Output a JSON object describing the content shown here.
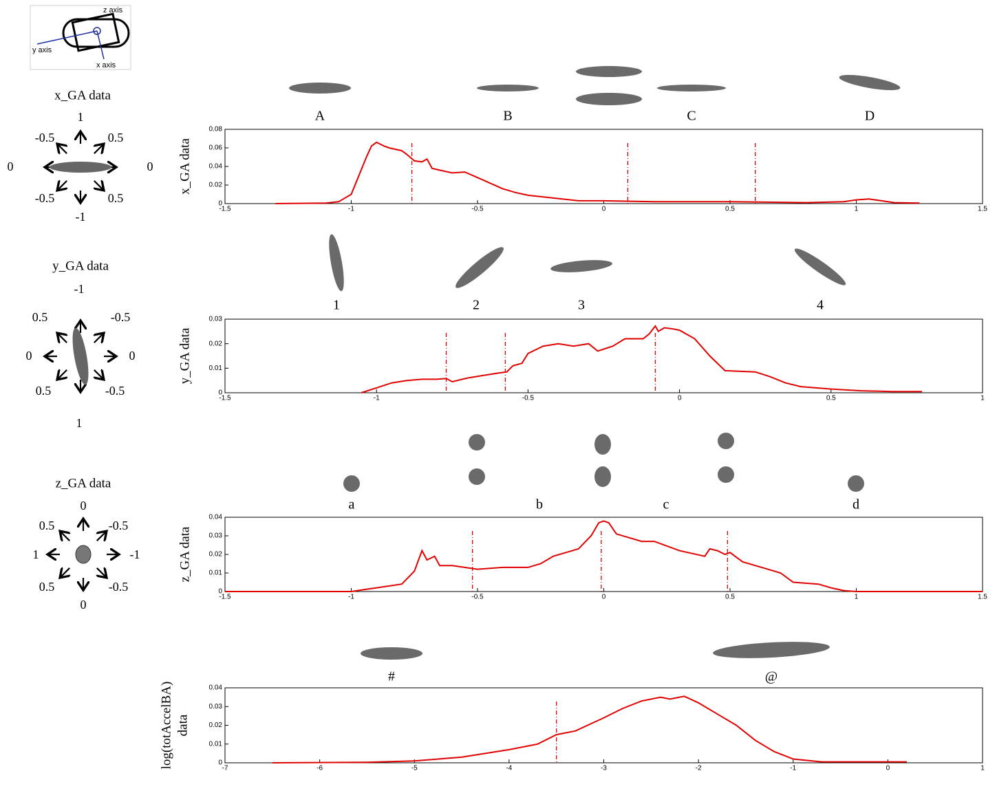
{
  "axes_key": [
    "z axis",
    "y axis",
    "x axis"
  ],
  "panels": [
    {
      "title": "x_GA data",
      "labels": [
        "1",
        "-0.5",
        "0.5",
        "0",
        "0",
        "-0.5",
        "0.5",
        "-1"
      ]
    },
    {
      "title": "y_GA data",
      "labels": [
        "-1",
        "0.5",
        "-0.5",
        "0",
        "0",
        "0.5",
        "-0.5",
        "1"
      ]
    },
    {
      "title": "z_GA data",
      "labels": [
        "0",
        "0.5",
        "-0.5",
        "1",
        "-1",
        "0.5",
        "-0.5",
        "0"
      ]
    }
  ],
  "chart_data": [
    {
      "type": "line",
      "ylabel": [
        "x_GA data"
      ],
      "annotations": [
        "A",
        "B",
        "C",
        "D"
      ],
      "color": "#e00000",
      "xlim": [
        -1.5,
        1.5
      ],
      "xticks": [
        -1.5,
        -1,
        -0.5,
        0,
        0.5,
        1,
        1.5
      ],
      "ylim": [
        0,
        0.08
      ],
      "yticks": [
        0,
        0.02,
        0.04,
        0.06,
        0.08
      ],
      "vlines": [
        -0.76,
        0.095,
        0.6
      ],
      "x": [
        -1.3,
        -1.1,
        -1.05,
        -1.0,
        -0.97,
        -0.94,
        -0.92,
        -0.9,
        -0.87,
        -0.85,
        -0.8,
        -0.78,
        -0.75,
        -0.72,
        -0.7,
        -0.68,
        -0.65,
        -0.6,
        -0.55,
        -0.5,
        -0.45,
        -0.4,
        -0.35,
        -0.3,
        -0.2,
        -0.1,
        0,
        0.2,
        0.5,
        0.8,
        0.95,
        1.0,
        1.05,
        1.1,
        1.15,
        1.25
      ],
      "values": [
        0,
        0.0005,
        0.002,
        0.01,
        0.03,
        0.05,
        0.062,
        0.066,
        0.062,
        0.06,
        0.057,
        0.053,
        0.046,
        0.045,
        0.048,
        0.038,
        0.036,
        0.033,
        0.034,
        0.028,
        0.022,
        0.016,
        0.012,
        0.009,
        0.006,
        0.003,
        0.003,
        0.002,
        0.002,
        0.001,
        0.002,
        0.004,
        0.005,
        0.003,
        0.001,
        0.0005
      ]
    },
    {
      "type": "line",
      "ylabel": [
        "y_GA data"
      ],
      "annotations": [
        "1",
        "2",
        "3",
        "4"
      ],
      "color": "#e00000",
      "xlim": [
        -1.5,
        1
      ],
      "xticks": [
        -1.5,
        -1,
        -0.5,
        0,
        0.5,
        1
      ],
      "ylim": [
        0,
        0.03
      ],
      "yticks": [
        0,
        0.01,
        0.02,
        0.03
      ],
      "vlines": [
        -0.77,
        -0.575,
        -0.08
      ],
      "x": [
        -1.05,
        -1,
        -0.95,
        -0.9,
        -0.85,
        -0.8,
        -0.77,
        -0.75,
        -0.7,
        -0.65,
        -0.6,
        -0.57,
        -0.55,
        -0.52,
        -0.5,
        -0.45,
        -0.4,
        -0.35,
        -0.3,
        -0.27,
        -0.22,
        -0.18,
        -0.12,
        -0.1,
        -0.08,
        -0.07,
        -0.05,
        -0.02,
        0,
        0.05,
        0.1,
        0.15,
        0.25,
        0.3,
        0.35,
        0.4,
        0.5,
        0.6,
        0.7,
        0.8
      ],
      "values": [
        0,
        0.002,
        0.004,
        0.005,
        0.0055,
        0.0055,
        0.0058,
        0.0045,
        0.006,
        0.007,
        0.008,
        0.0085,
        0.011,
        0.012,
        0.016,
        0.019,
        0.02,
        0.019,
        0.02,
        0.017,
        0.019,
        0.022,
        0.022,
        0.024,
        0.0272,
        0.025,
        0.0265,
        0.026,
        0.0255,
        0.022,
        0.015,
        0.009,
        0.0085,
        0.0065,
        0.004,
        0.0025,
        0.0015,
        0.0008,
        0.0005,
        0.0005
      ]
    },
    {
      "type": "line",
      "ylabel": [
        "z_GA data"
      ],
      "annotations": [
        "a",
        "b",
        "c",
        "d"
      ],
      "color": "#e00000",
      "xlim": [
        -1.5,
        1.5
      ],
      "xticks": [
        -1.5,
        -1,
        -0.5,
        0,
        0.5,
        1,
        1.5
      ],
      "ylim": [
        0,
        0.04
      ],
      "yticks": [
        0,
        0.01,
        0.02,
        0.03,
        0.04
      ],
      "vlines": [
        -0.52,
        -0.01,
        0.49
      ],
      "x": [
        -1.5,
        -1,
        -0.95,
        -0.9,
        -0.8,
        -0.75,
        -0.72,
        -0.7,
        -0.67,
        -0.65,
        -0.6,
        -0.5,
        -0.4,
        -0.3,
        -0.25,
        -0.2,
        -0.1,
        -0.05,
        -0.02,
        0,
        0.02,
        0.05,
        0.1,
        0.15,
        0.2,
        0.3,
        0.4,
        0.42,
        0.45,
        0.48,
        0.5,
        0.55,
        0.65,
        0.7,
        0.75,
        0.85,
        0.9,
        0.95,
        1,
        1.5
      ],
      "values": [
        0,
        0,
        0.001,
        0.002,
        0.004,
        0.011,
        0.022,
        0.017,
        0.019,
        0.014,
        0.014,
        0.012,
        0.013,
        0.013,
        0.015,
        0.019,
        0.023,
        0.03,
        0.037,
        0.038,
        0.037,
        0.031,
        0.029,
        0.027,
        0.027,
        0.022,
        0.019,
        0.023,
        0.022,
        0.02,
        0.021,
        0.016,
        0.012,
        0.01,
        0.005,
        0.004,
        0.002,
        0.0005,
        0,
        0
      ]
    },
    {
      "type": "line",
      "ylabel": [
        "log(totAccelBA)",
        "data"
      ],
      "annotations": [
        "#",
        "@"
      ],
      "color": "#e00000",
      "xlim": [
        -7,
        1
      ],
      "xticks": [
        -7,
        -6,
        -5,
        -4,
        -3,
        -2,
        -1,
        0,
        1
      ],
      "ylim": [
        0,
        0.04
      ],
      "yticks": [
        0,
        0.01,
        0.02,
        0.03,
        0.04
      ],
      "vlines": [
        -3.5
      ],
      "x": [
        -6.5,
        -5.5,
        -5,
        -4.5,
        -4,
        -3.7,
        -3.5,
        -3.3,
        -3,
        -2.8,
        -2.6,
        -2.4,
        -2.3,
        -2.15,
        -2,
        -1.8,
        -1.6,
        -1.4,
        -1.2,
        -1,
        -0.7,
        0.2
      ],
      "values": [
        0,
        0.0003,
        0.001,
        0.003,
        0.007,
        0.01,
        0.015,
        0.017,
        0.024,
        0.029,
        0.033,
        0.035,
        0.034,
        0.0355,
        0.032,
        0.026,
        0.02,
        0.012,
        0.006,
        0.002,
        0.0005,
        0.0005
      ]
    }
  ]
}
